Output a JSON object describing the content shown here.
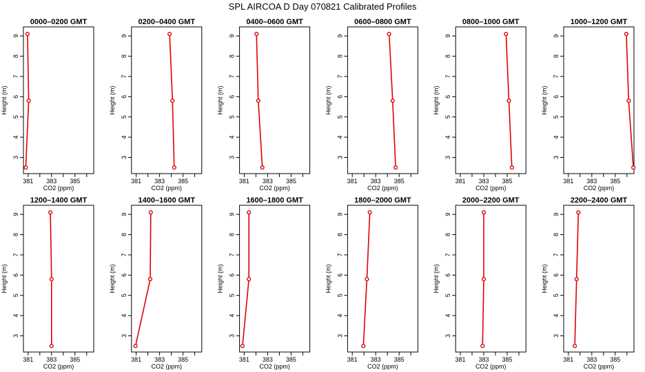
{
  "title": "SPL AIRCOA D  Day 070821  Calibrated Profiles",
  "colors": {
    "series": "#dd0000",
    "axis": "#000000",
    "background": "#ffffff"
  },
  "chart_data": [
    {
      "type": "line",
      "title": "0000–0200 GMT",
      "xlabel": "CO2 (ppm)",
      "ylabel": "Height (m)",
      "xlim": [
        380.6,
        386.6
      ],
      "ylim": [
        2.2,
        9.45
      ],
      "xticks": [
        381,
        383,
        385
      ],
      "yticks": [
        3,
        4,
        5,
        6,
        7,
        8,
        9
      ],
      "grid": false,
      "marker": "open-circle",
      "points": [
        {
          "x": 380.8,
          "y": 2.5
        },
        {
          "x": 381.05,
          "y": 5.8
        },
        {
          "x": 380.95,
          "y": 9.1
        }
      ]
    },
    {
      "type": "line",
      "title": "0200–0400 GMT",
      "xlabel": "CO2 (ppm)",
      "ylabel": "Height (m)",
      "xlim": [
        380.6,
        386.6
      ],
      "ylim": [
        2.2,
        9.45
      ],
      "xticks": [
        381,
        383,
        385
      ],
      "yticks": [
        3,
        4,
        5,
        6,
        7,
        8,
        9
      ],
      "grid": false,
      "marker": "open-circle",
      "points": [
        {
          "x": 384.25,
          "y": 2.5
        },
        {
          "x": 384.1,
          "y": 5.8
        },
        {
          "x": 383.85,
          "y": 9.1
        }
      ]
    },
    {
      "type": "line",
      "title": "0400–0600 GMT",
      "xlabel": "CO2 (ppm)",
      "ylabel": "Height (m)",
      "xlim": [
        380.6,
        386.6
      ],
      "ylim": [
        2.2,
        9.45
      ],
      "xticks": [
        381,
        383,
        385
      ],
      "yticks": [
        3,
        4,
        5,
        6,
        7,
        8,
        9
      ],
      "grid": false,
      "marker": "open-circle",
      "points": [
        {
          "x": 382.55,
          "y": 2.5
        },
        {
          "x": 382.2,
          "y": 5.8
        },
        {
          "x": 382.05,
          "y": 9.1
        }
      ]
    },
    {
      "type": "line",
      "title": "0600–0800 GMT",
      "xlabel": "CO2 (ppm)",
      "ylabel": "Height (m)",
      "xlim": [
        380.6,
        386.6
      ],
      "ylim": [
        2.2,
        9.45
      ],
      "xticks": [
        381,
        383,
        385
      ],
      "yticks": [
        3,
        4,
        5,
        6,
        7,
        8,
        9
      ],
      "grid": false,
      "marker": "open-circle",
      "points": [
        {
          "x": 384.7,
          "y": 2.5
        },
        {
          "x": 384.45,
          "y": 5.8
        },
        {
          "x": 384.15,
          "y": 9.1
        }
      ]
    },
    {
      "type": "line",
      "title": "0800–1000 GMT",
      "xlabel": "CO2 (ppm)",
      "ylabel": "Height (m)",
      "xlim": [
        380.6,
        386.6
      ],
      "ylim": [
        2.2,
        9.45
      ],
      "xticks": [
        381,
        383,
        385
      ],
      "yticks": [
        3,
        4,
        5,
        6,
        7,
        8,
        9
      ],
      "grid": false,
      "marker": "open-circle",
      "points": [
        {
          "x": 385.4,
          "y": 2.5
        },
        {
          "x": 385.15,
          "y": 5.8
        },
        {
          "x": 384.9,
          "y": 9.1
        }
      ]
    },
    {
      "type": "line",
      "title": "1000–1200 GMT",
      "xlabel": "CO2 (ppm)",
      "ylabel": "Height (m)",
      "xlim": [
        380.6,
        386.6
      ],
      "ylim": [
        2.2,
        9.45
      ],
      "xticks": [
        381,
        383,
        385
      ],
      "yticks": [
        3,
        4,
        5,
        6,
        7,
        8,
        9
      ],
      "grid": false,
      "marker": "open-circle",
      "points": [
        {
          "x": 386.55,
          "y": 2.5
        },
        {
          "x": 386.15,
          "y": 5.8
        },
        {
          "x": 385.95,
          "y": 9.1
        }
      ]
    },
    {
      "type": "line",
      "title": "1200–1400 GMT",
      "xlabel": "CO2 (ppm)",
      "ylabel": "Height (m)",
      "xlim": [
        380.6,
        386.6
      ],
      "ylim": [
        2.2,
        9.45
      ],
      "xticks": [
        381,
        383,
        385
      ],
      "yticks": [
        3,
        4,
        5,
        6,
        7,
        8,
        9
      ],
      "grid": false,
      "marker": "open-circle",
      "points": [
        {
          "x": 383.0,
          "y": 2.5
        },
        {
          "x": 383.0,
          "y": 5.8
        },
        {
          "x": 382.9,
          "y": 9.1
        }
      ]
    },
    {
      "type": "line",
      "title": "1400–1600 GMT",
      "xlabel": "CO2 (ppm)",
      "ylabel": "Height (m)",
      "xlim": [
        380.6,
        386.6
      ],
      "ylim": [
        2.2,
        9.45
      ],
      "xticks": [
        381,
        383,
        385
      ],
      "yticks": [
        3,
        4,
        5,
        6,
        7,
        8,
        9
      ],
      "grid": false,
      "marker": "open-circle",
      "points": [
        {
          "x": 380.95,
          "y": 2.5
        },
        {
          "x": 382.2,
          "y": 5.8
        },
        {
          "x": 382.25,
          "y": 9.1
        }
      ]
    },
    {
      "type": "line",
      "title": "1600–1800 GMT",
      "xlabel": "CO2 (ppm)",
      "ylabel": "Height (m)",
      "xlim": [
        380.6,
        386.6
      ],
      "ylim": [
        2.2,
        9.45
      ],
      "xticks": [
        381,
        383,
        385
      ],
      "yticks": [
        3,
        4,
        5,
        6,
        7,
        8,
        9
      ],
      "grid": false,
      "marker": "open-circle",
      "points": [
        {
          "x": 380.85,
          "y": 2.5
        },
        {
          "x": 381.4,
          "y": 5.8
        },
        {
          "x": 381.4,
          "y": 9.1
        }
      ]
    },
    {
      "type": "line",
      "title": "1800–2000 GMT",
      "xlabel": "CO2 (ppm)",
      "ylabel": "Height (m)",
      "xlim": [
        380.6,
        386.6
      ],
      "ylim": [
        2.2,
        9.45
      ],
      "xticks": [
        381,
        383,
        385
      ],
      "yticks": [
        3,
        4,
        5,
        6,
        7,
        8,
        9
      ],
      "grid": false,
      "marker": "open-circle",
      "points": [
        {
          "x": 381.95,
          "y": 2.5
        },
        {
          "x": 382.25,
          "y": 5.8
        },
        {
          "x": 382.5,
          "y": 9.1
        }
      ]
    },
    {
      "type": "line",
      "title": "2000–2200 GMT",
      "xlabel": "CO2 (ppm)",
      "ylabel": "Height (m)",
      "xlim": [
        380.6,
        386.6
      ],
      "ylim": [
        2.2,
        9.45
      ],
      "xticks": [
        381,
        383,
        385
      ],
      "yticks": [
        3,
        4,
        5,
        6,
        7,
        8,
        9
      ],
      "grid": false,
      "marker": "open-circle",
      "points": [
        {
          "x": 382.9,
          "y": 2.5
        },
        {
          "x": 383.0,
          "y": 5.8
        },
        {
          "x": 383.0,
          "y": 9.1
        }
      ]
    },
    {
      "type": "line",
      "title": "2200–2400 GMT",
      "xlabel": "CO2 (ppm)",
      "ylabel": "Height (m)",
      "xlim": [
        380.6,
        386.6
      ],
      "ylim": [
        2.2,
        9.45
      ],
      "xticks": [
        381,
        383,
        385
      ],
      "yticks": [
        3,
        4,
        5,
        6,
        7,
        8,
        9
      ],
      "grid": false,
      "marker": "open-circle",
      "points": [
        {
          "x": 381.55,
          "y": 2.5
        },
        {
          "x": 381.7,
          "y": 5.8
        },
        {
          "x": 381.85,
          "y": 9.1
        }
      ]
    }
  ]
}
